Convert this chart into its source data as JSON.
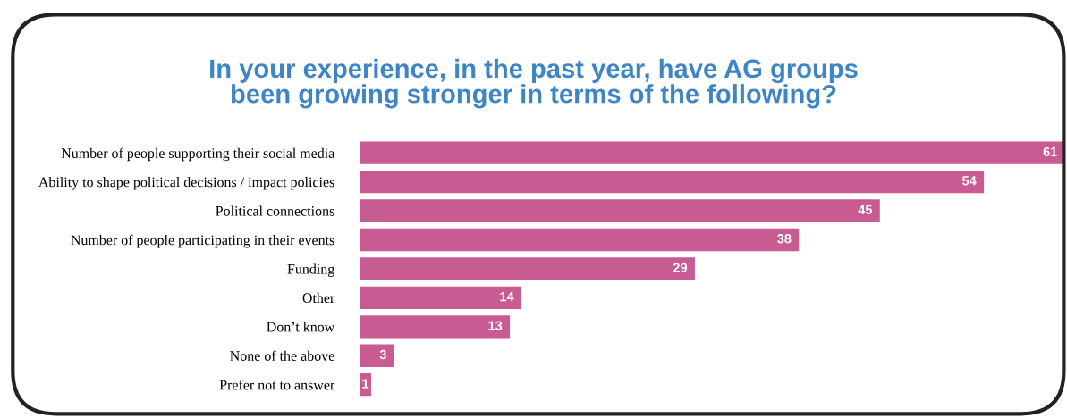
{
  "chart_data": {
    "type": "bar",
    "orientation": "horizontal",
    "title": "In your experience, in the past year, have AG groups\nbeen growing stronger in terms of the following?",
    "categories": [
      "Number of people supporting their social media",
      "Ability to shape political decisions / impact policies",
      "Political connections",
      "Number of people participating in their events",
      "Funding",
      "Other",
      "Don’t know",
      "None of the above",
      "Prefer not to answer"
    ],
    "values": [
      61,
      54,
      45,
      38,
      29,
      14,
      13,
      3,
      1
    ],
    "color": "#c95b93",
    "data_labels": true,
    "grid": false,
    "legend": false
  }
}
